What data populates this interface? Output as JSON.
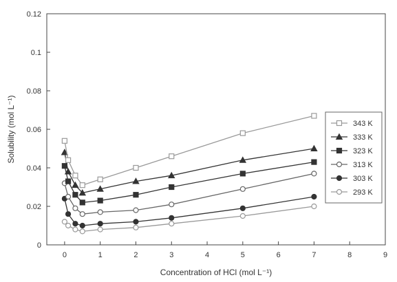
{
  "chart_data": {
    "type": "line",
    "title": "",
    "xlabel": "Concentration of HCl (mol L⁻¹)",
    "ylabel": "Solubility (mol L⁻¹)",
    "xlim": [
      -0.5,
      9
    ],
    "ylim": [
      0,
      0.12
    ],
    "xticks": [
      0,
      1,
      2,
      3,
      4,
      5,
      6,
      7,
      8,
      9
    ],
    "xtick_labels": [
      "0",
      "1",
      "2",
      "3",
      "4",
      "5",
      "6",
      "7",
      "8",
      "9"
    ],
    "yticks": [
      0,
      0.02,
      0.04,
      0.06,
      0.08,
      0.1,
      0.12
    ],
    "ytick_labels": [
      "0",
      "0.02",
      "0.04",
      "0.06",
      "0.08",
      "0.1",
      "0.12"
    ],
    "grid": false,
    "legend_position": "right",
    "series": [
      {
        "name": "293 K",
        "marker": "open-circle",
        "color": "#999999",
        "x": [
          0,
          0.1,
          0.3,
          0.5,
          1,
          2,
          3,
          5,
          7
        ],
        "y": [
          0.012,
          0.01,
          0.008,
          0.007,
          0.008,
          0.009,
          0.011,
          0.015,
          0.02
        ]
      },
      {
        "name": "303 K",
        "marker": "filled-circle",
        "color": "#333333",
        "x": [
          0,
          0.1,
          0.3,
          0.5,
          1,
          2,
          3,
          5,
          7
        ],
        "y": [
          0.024,
          0.016,
          0.011,
          0.01,
          0.011,
          0.012,
          0.014,
          0.019,
          0.025
        ]
      },
      {
        "name": "313 K",
        "marker": "open-circle",
        "color": "#666666",
        "x": [
          0,
          0.1,
          0.3,
          0.5,
          1,
          2,
          3,
          5,
          7
        ],
        "y": [
          0.032,
          0.025,
          0.019,
          0.016,
          0.017,
          0.018,
          0.021,
          0.029,
          0.037
        ]
      },
      {
        "name": "323 K",
        "marker": "filled-square",
        "color": "#333333",
        "x": [
          0,
          0.1,
          0.3,
          0.5,
          1,
          2,
          3,
          5,
          7
        ],
        "y": [
          0.041,
          0.033,
          0.026,
          0.022,
          0.023,
          0.026,
          0.03,
          0.037,
          0.043
        ]
      },
      {
        "name": "333 K",
        "marker": "filled-triangle",
        "color": "#333333",
        "x": [
          0,
          0.1,
          0.3,
          0.5,
          1,
          2,
          3,
          5,
          7
        ],
        "y": [
          0.048,
          0.038,
          0.031,
          0.027,
          0.029,
          0.033,
          0.036,
          0.044,
          0.05
        ]
      },
      {
        "name": "343 K",
        "marker": "open-square",
        "color": "#999999",
        "x": [
          0,
          0.1,
          0.3,
          0.5,
          1,
          2,
          3,
          5,
          7
        ],
        "y": [
          0.054,
          0.044,
          0.036,
          0.031,
          0.034,
          0.04,
          0.046,
          0.058,
          0.067
        ]
      }
    ]
  }
}
